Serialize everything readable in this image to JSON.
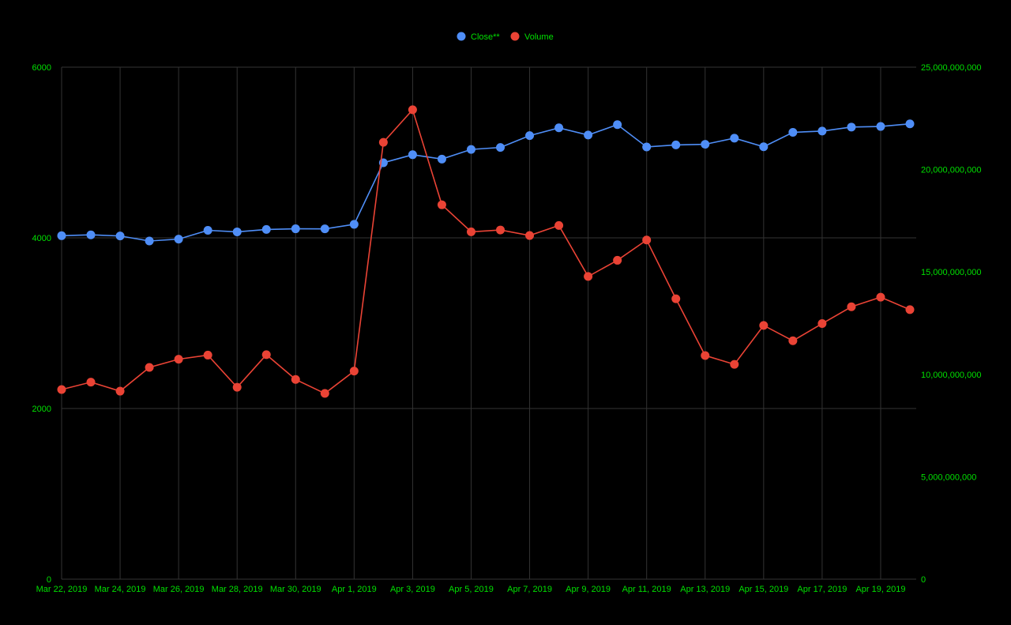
{
  "chart_data": {
    "type": "line",
    "title": "",
    "xlabel": "",
    "ylabel": "",
    "x": [
      "Mar 22, 2019",
      "Mar 23, 2019",
      "Mar 24, 2019",
      "Mar 25, 2019",
      "Mar 26, 2019",
      "Mar 27, 2019",
      "Mar 28, 2019",
      "Mar 29, 2019",
      "Mar 30, 2019",
      "Mar 31, 2019",
      "Apr 1, 2019",
      "Apr 2, 2019",
      "Apr 3, 2019",
      "Apr 4, 2019",
      "Apr 5, 2019",
      "Apr 6, 2019",
      "Apr 7, 2019",
      "Apr 8, 2019",
      "Apr 9, 2019",
      "Apr 10, 2019",
      "Apr 11, 2019",
      "Apr 12, 2019",
      "Apr 13, 2019",
      "Apr 14, 2019",
      "Apr 15, 2019",
      "Apr 16, 2019",
      "Apr 17, 2019",
      "Apr 18, 2019",
      "Apr 19, 2019",
      "Apr 20, 2019"
    ],
    "x_tick_labels": [
      "Mar 22, 2019",
      "Mar 24, 2019",
      "Mar 26, 2019",
      "Mar 28, 2019",
      "Mar 30, 2019",
      "Apr 1, 2019",
      "Apr 3, 2019",
      "Apr 5, 2019",
      "Apr 7, 2019",
      "Apr 9, 2019",
      "Apr 11, 2019",
      "Apr 13, 2019",
      "Apr 15, 2019",
      "Apr 17, 2019",
      "Apr 19, 2019"
    ],
    "y_left": {
      "ylim": [
        0,
        6000
      ],
      "ticks": [
        0,
        2000,
        4000,
        6000
      ],
      "tick_labels": [
        "0",
        "2000",
        "4000",
        "6000"
      ]
    },
    "y_right": {
      "ylim": [
        0,
        25000000000
      ],
      "ticks": [
        0,
        5000000000,
        10000000000,
        15000000000,
        20000000000,
        25000000000
      ],
      "tick_labels": [
        "0",
        "5,000,000,000",
        "10,000,000,000",
        "15,000,000,000",
        "20,000,000,000",
        "25,000,000,000"
      ]
    },
    "series": [
      {
        "name": "Close**",
        "axis": "left",
        "color": "#4f8ef7",
        "values": [
          4025,
          4035,
          4022,
          3963,
          3985,
          4088,
          4070,
          4098,
          4106,
          4105,
          4158,
          4880,
          4974,
          4923,
          5036,
          5059,
          5198,
          5289,
          5205,
          5326,
          5065,
          5089,
          5096,
          5168,
          5067,
          5236,
          5251,
          5298,
          5305,
          5336
        ]
      },
      {
        "name": "Volume",
        "axis": "right",
        "color": "#ea4335",
        "values": [
          9260000000,
          9620000000,
          9180000000,
          10340000000,
          10740000000,
          10940000000,
          9370000000,
          10960000000,
          9750000000,
          9070000000,
          10160000000,
          21330000000,
          22920000000,
          18280000000,
          16960000000,
          17050000000,
          16780000000,
          17270000000,
          14780000000,
          15570000000,
          16560000000,
          13690000000,
          10920000000,
          10490000000,
          12390000000,
          11640000000,
          12480000000,
          13300000000,
          13770000000,
          13160000000
        ]
      }
    ],
    "grid": true,
    "legend": "top-center",
    "colors": {
      "background": "#000000",
      "grid": "#333333",
      "axis_text": "#00e000"
    }
  }
}
